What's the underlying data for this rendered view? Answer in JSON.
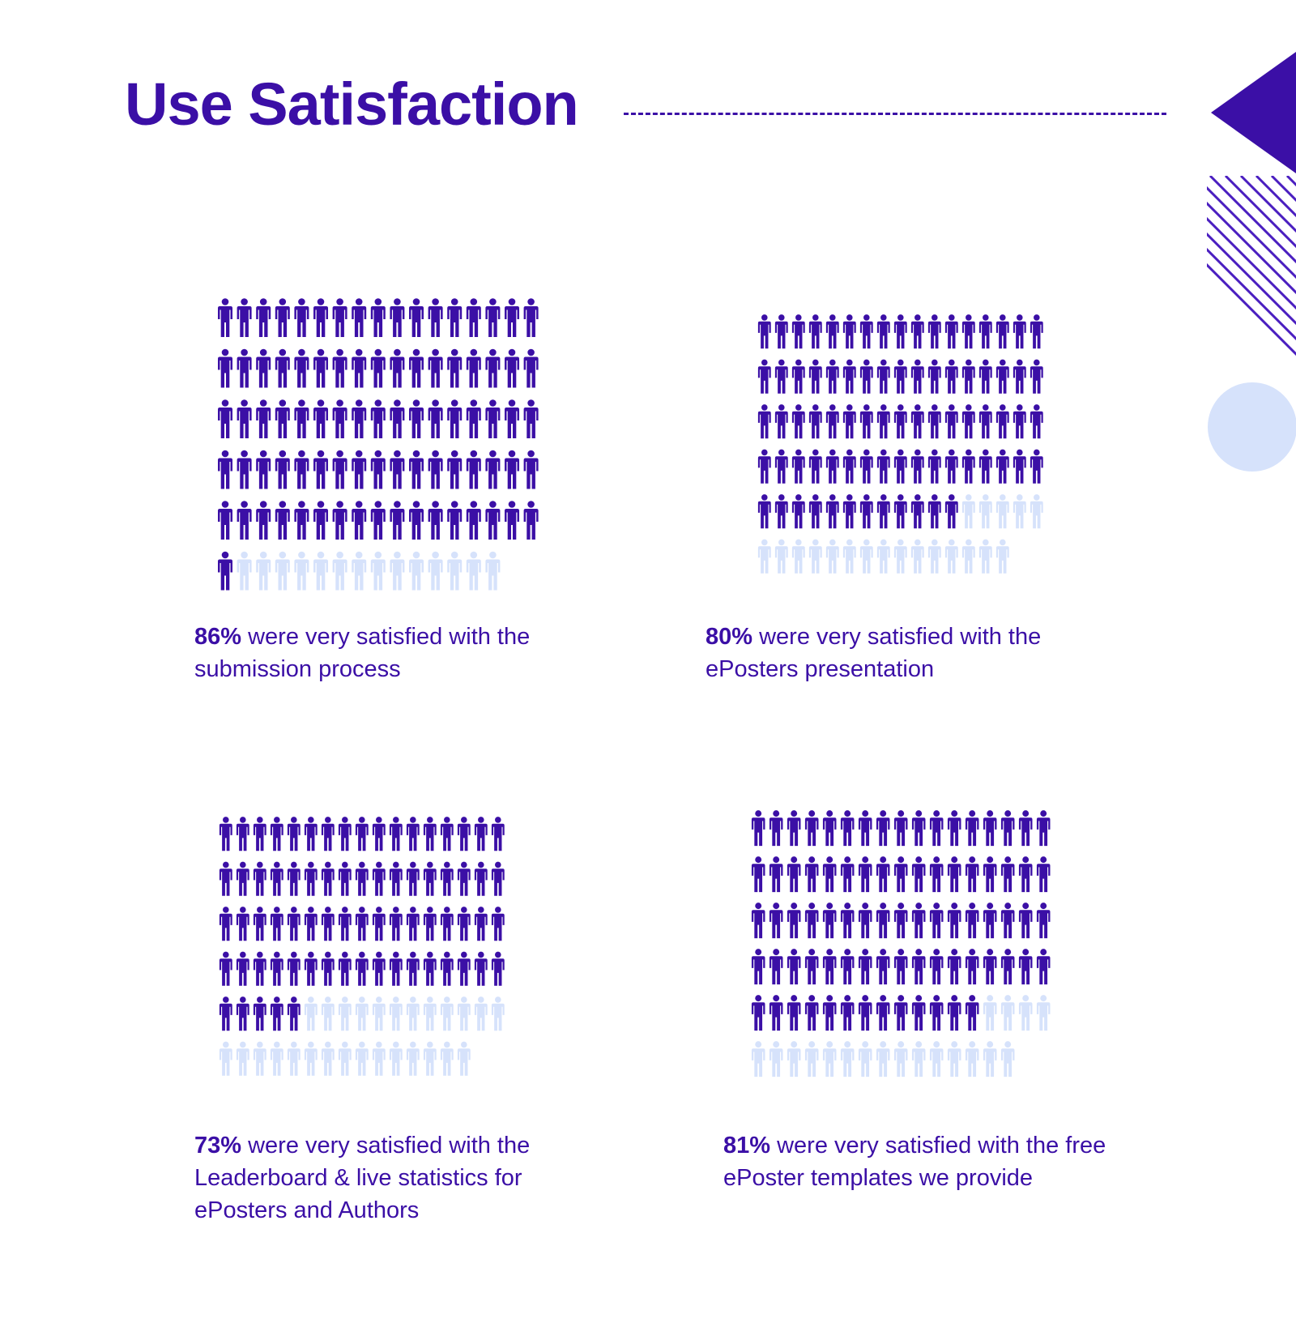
{
  "title": "Use Satisfaction",
  "colors": {
    "accent": "#3b0fa6",
    "filled": "#3b0fa6",
    "empty": "#d6e2fb",
    "stripe": "#4a1ec0",
    "circle": "#d6e2fb"
  },
  "chart_data": [
    {
      "type": "pictogram",
      "percent": 86,
      "icon": "person-icon",
      "columns": 17,
      "total_icons": 100,
      "filled_icons": 86,
      "caption_value": "86%",
      "caption_text": " were very satisfied with the submission process"
    },
    {
      "type": "pictogram",
      "percent": 80,
      "icon": "person-icon",
      "columns": 17,
      "total_icons": 100,
      "filled_icons": 80,
      "caption_value": "80%",
      "caption_text": " were very satisfied with the ePosters presentation"
    },
    {
      "type": "pictogram",
      "percent": 73,
      "icon": "person-icon",
      "columns": 17,
      "total_icons": 100,
      "filled_icons": 73,
      "caption_value": "73%",
      "caption_text": " were very satisfied with the Leaderboard & live statistics for ePosters and Authors"
    },
    {
      "type": "pictogram",
      "percent": 81,
      "icon": "person-icon",
      "columns": 17,
      "total_icons": 100,
      "filled_icons": 81,
      "caption_value": "81%",
      "caption_text": " were very satisfied with the free ePoster templates we provide"
    }
  ]
}
